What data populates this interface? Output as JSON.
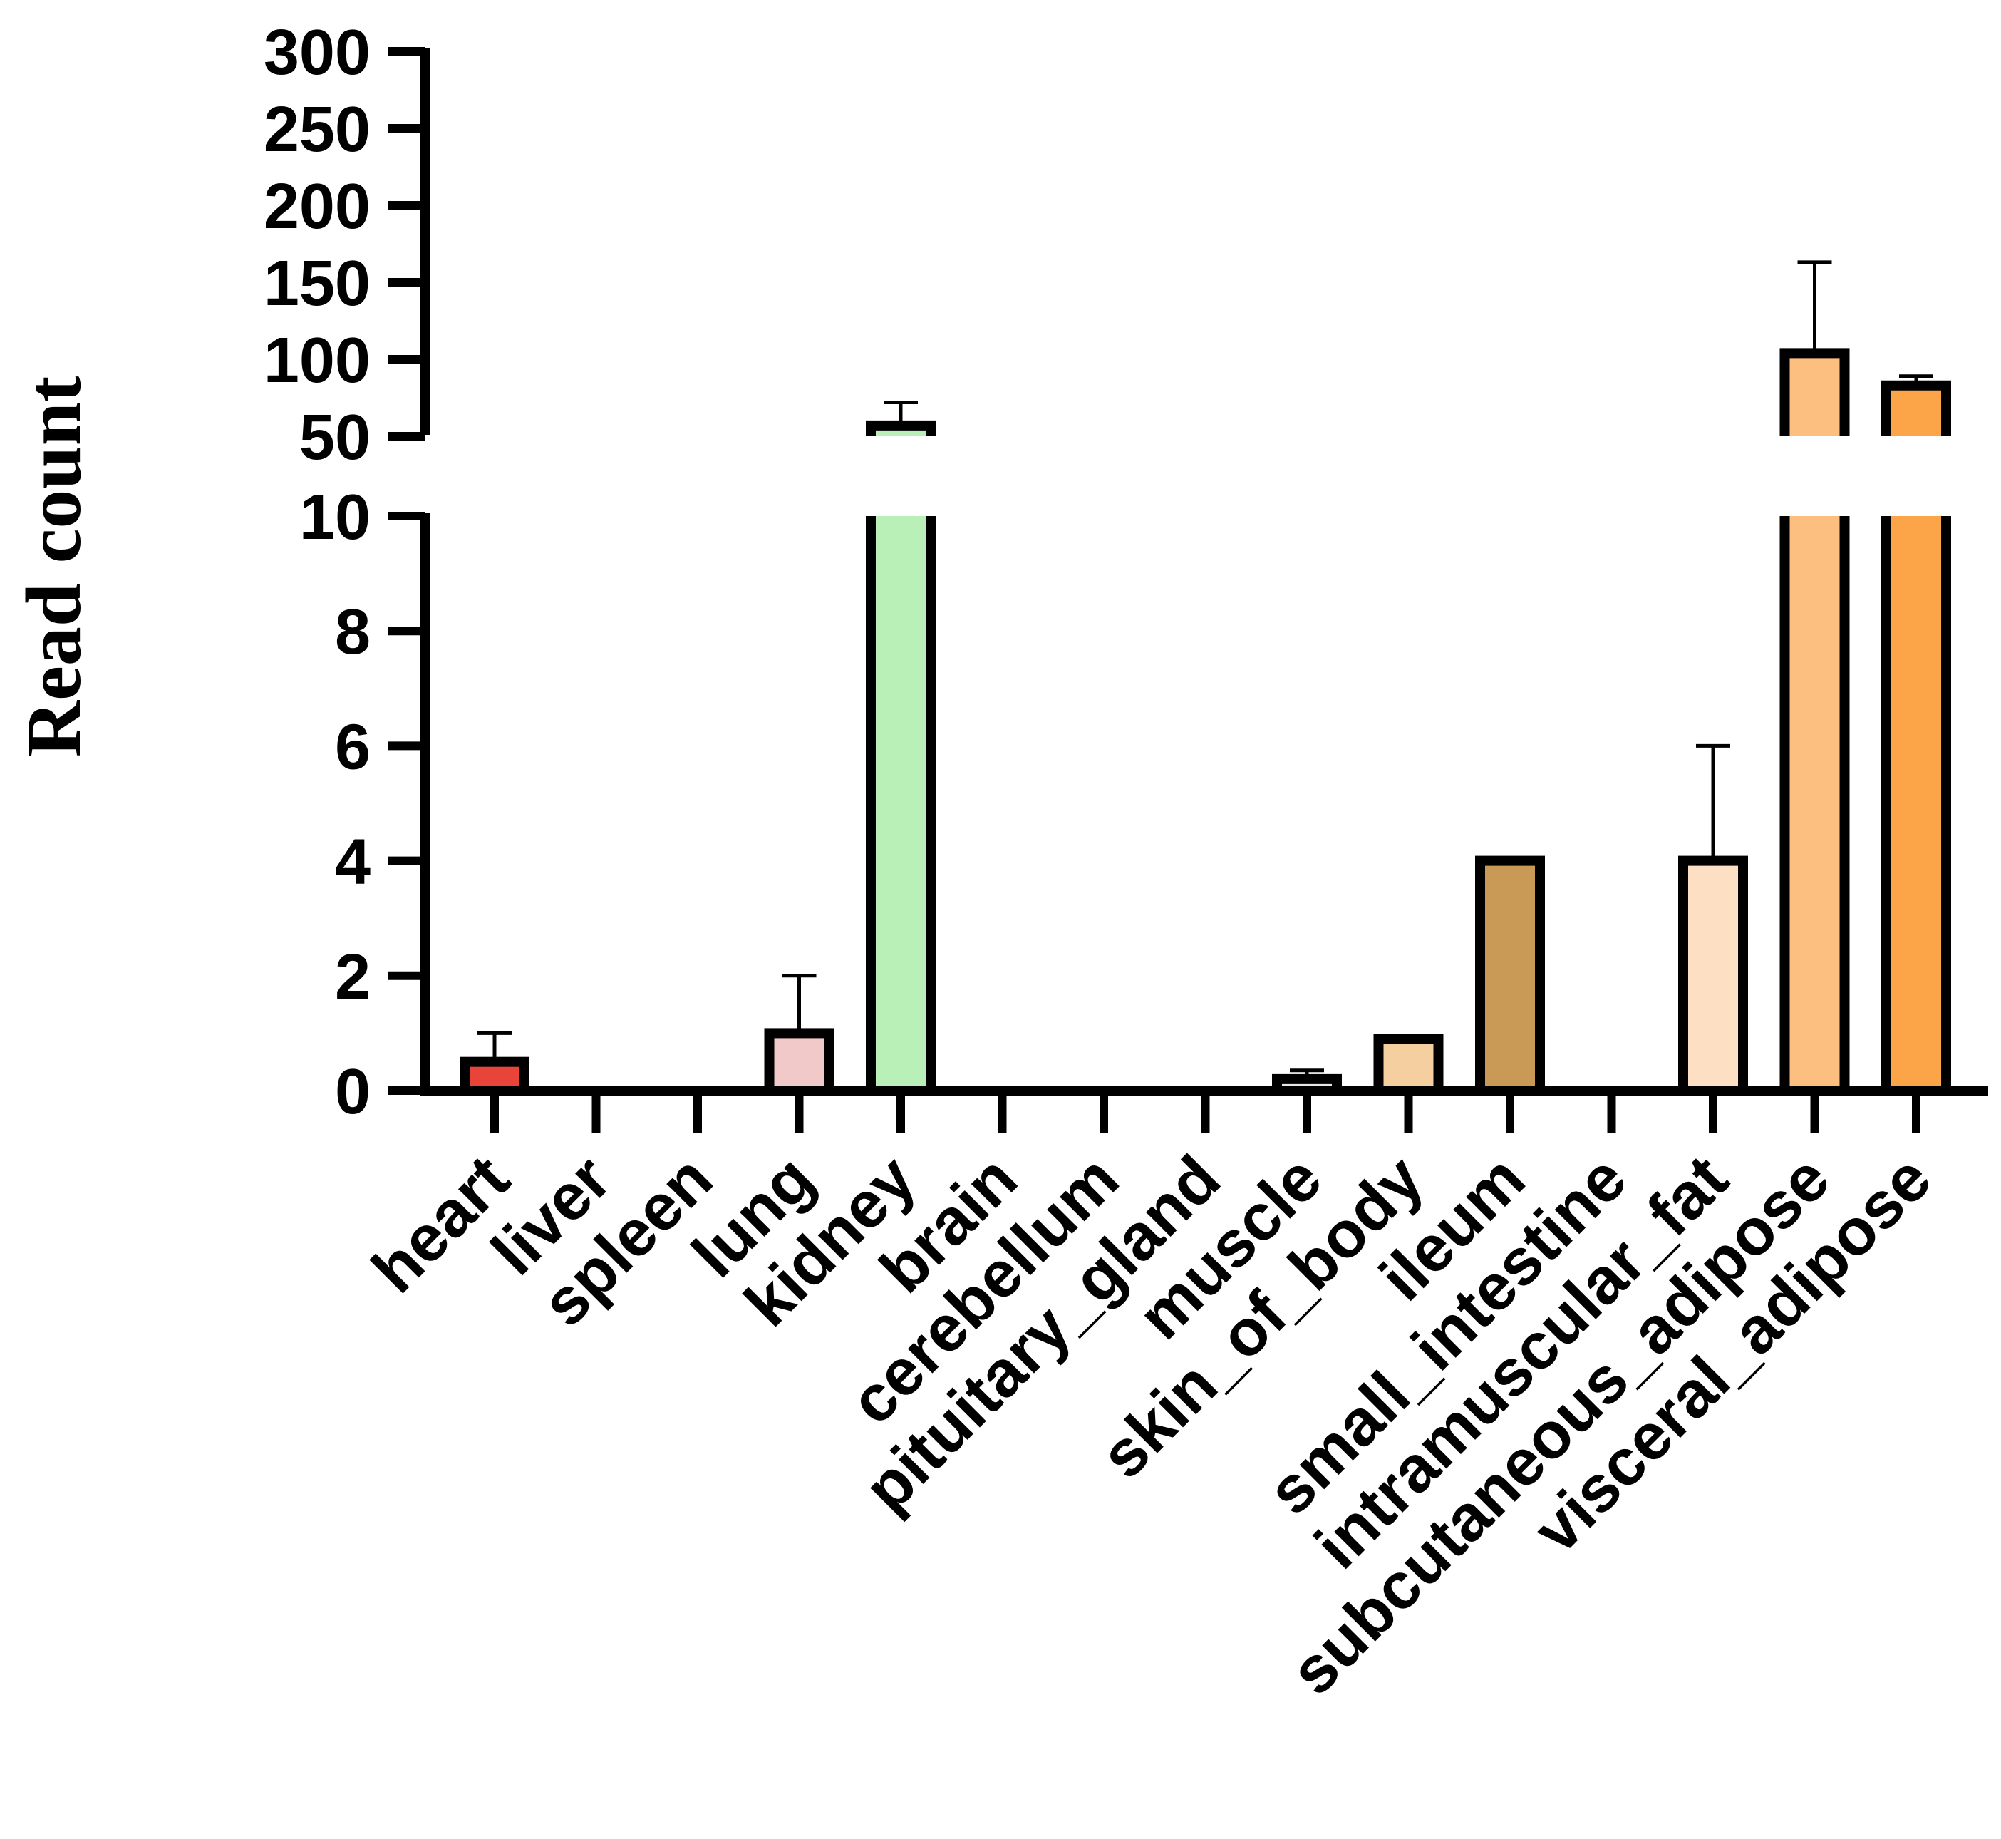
{
  "chart_data": {
    "type": "bar",
    "title": "",
    "xlabel": "",
    "ylabel": "Read count",
    "y_axis_break": true,
    "lower_segment": {
      "range": [
        0,
        10
      ],
      "ticks": [
        0,
        2,
        4,
        6,
        8,
        10
      ],
      "tick_labels": [
        "0",
        "2",
        "4",
        "6",
        "8",
        "10"
      ]
    },
    "upper_segment": {
      "range": [
        50,
        300
      ],
      "ticks": [
        50,
        100,
        150,
        200,
        250,
        300
      ],
      "tick_labels": [
        "50",
        "100",
        "150",
        "200",
        "250",
        "300"
      ]
    },
    "categories": [
      "heart",
      "liver",
      "spleen",
      "lung",
      "kidney",
      "brain",
      "cerebellum",
      "pituitary_gland",
      "muscle",
      "skin_of_body",
      "ileum",
      "small_intestine",
      "intramuscular_fat",
      "subcutaneous_adipose",
      "visceral_adipose"
    ],
    "series": [
      {
        "name": "Read count",
        "values": [
          0.5,
          0,
          0,
          1,
          57,
          0,
          0,
          0,
          0.2,
          0.9,
          4,
          0,
          4,
          104,
          83
        ],
        "error_upper": [
          1,
          null,
          null,
          2,
          72,
          null,
          null,
          null,
          0.35,
          null,
          null,
          null,
          6,
          163,
          89
        ],
        "colors": [
          "#e8443a",
          null,
          null,
          "#f2c9c9",
          "#b8f0b8",
          null,
          null,
          null,
          "#e6e6e6",
          "#f6cfa0",
          "#c99a55",
          null,
          "#fde0c4",
          "#fcbf80",
          "#fba448"
        ]
      }
    ],
    "grid": false,
    "legend": "none"
  }
}
